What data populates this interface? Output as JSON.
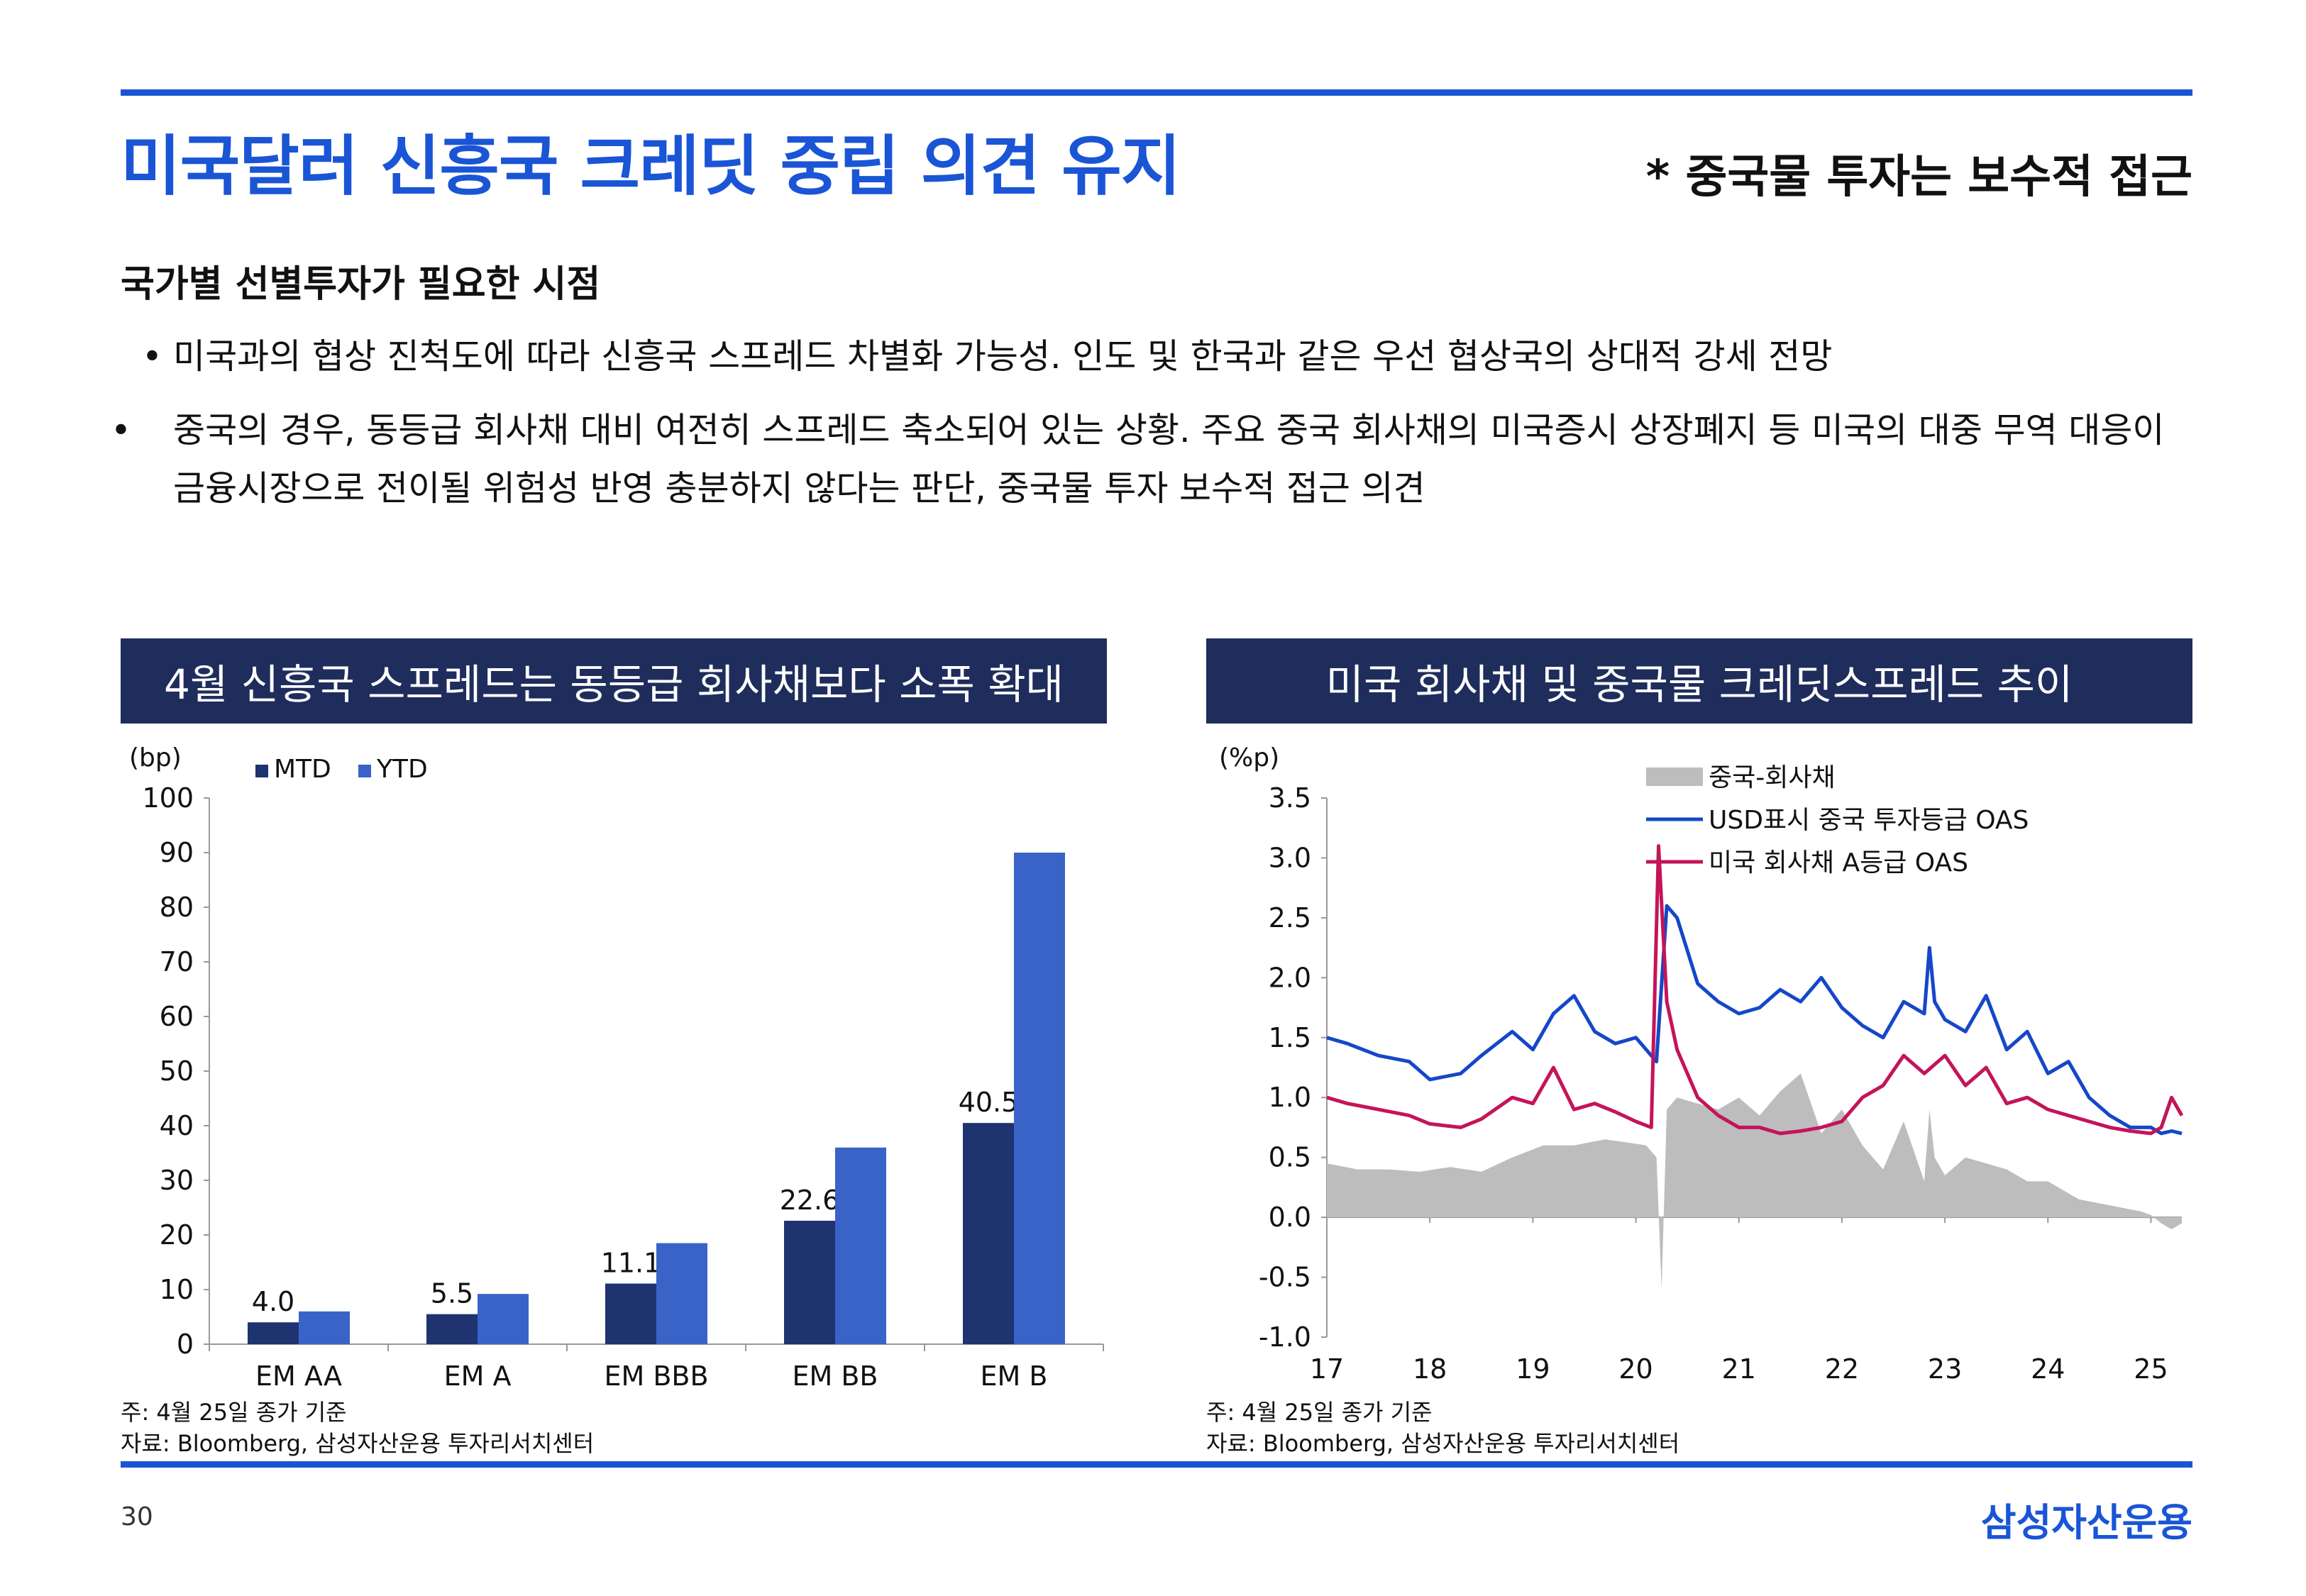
{
  "header": {
    "title": "미국달러 신흥국 크레딧 중립 의견 유지",
    "subtitle": "* 중국물 투자는 보수적 접근"
  },
  "section": {
    "heading": "국가별 선별투자가 필요한 시점",
    "bullets": [
      "미국과의 협상 진척도에 따라 신흥국 스프레드 차별화 가능성. 인도 및 한국과 같은 우선 협상국의 상대적 강세 전망",
      "중국의 경우, 동등급 회사채 대비 여전히 스프레드 축소되어 있는 상황. 주요 중국 회사채의 미국증시 상장폐지 등 미국의 대중 무역 대응이 금융시장으로 전이될 위험성 반영 충분하지 않다는 판단, 중국물 투자 보수적 접근 의견"
    ]
  },
  "panel_left": {
    "title": "4월 신흥국 스프레드는 동등급 회사채보다 소폭 확대",
    "note": "주: 4월 25일 종가 기준",
    "source": "자료: Bloomberg, 삼성자산운용 투자리서치센터"
  },
  "panel_right": {
    "title": "미국 회사채 및 중국물 크레딧스프레드 추이",
    "note": "주: 4월 25일 종가 기준",
    "source": "자료: Bloomberg, 삼성자산운용 투자리서치센터"
  },
  "footer": {
    "page_number": "30",
    "logo_text": "삼성자산운용"
  },
  "chart_data": [
    {
      "type": "bar",
      "unit_label": "(bp)",
      "categories": [
        "EM AA",
        "EM A",
        "EM BBB",
        "EM BB",
        "EM B"
      ],
      "series": [
        {
          "name": "MTD",
          "color": "#1f3370",
          "values": [
            4.0,
            5.5,
            11.1,
            22.6,
            40.5
          ],
          "labels": [
            "4.0",
            "5.5",
            "11.1",
            "22.6",
            "40.5"
          ]
        },
        {
          "name": "YTD",
          "color": "#3a63c8",
          "values": [
            6.0,
            9.2,
            18.5,
            36.0,
            90.0
          ]
        }
      ],
      "ylim": [
        0,
        100
      ],
      "yticks": [
        "0",
        "10",
        "20",
        "30",
        "40",
        "50",
        "60",
        "70",
        "80",
        "90",
        "100"
      ]
    },
    {
      "type": "line",
      "unit_label": "(%p)",
      "ylim": [
        -1.0,
        3.5
      ],
      "yticks": [
        "-1.0",
        "-0.5",
        "0.0",
        "0.5",
        "1.0",
        "1.5",
        "2.0",
        "2.5",
        "3.0",
        "3.5"
      ],
      "xticks": [
        "17",
        "18",
        "19",
        "20",
        "21",
        "22",
        "23",
        "24",
        "25"
      ],
      "xrange": [
        2017.0,
        2025.3
      ],
      "series": [
        {
          "name": "중국-회사채",
          "kind": "area",
          "color": "#bdbdbd",
          "x": [
            2017.0,
            2017.3,
            2017.6,
            2017.9,
            2018.2,
            2018.5,
            2018.8,
            2019.1,
            2019.4,
            2019.7,
            2019.95,
            2020.1,
            2020.2,
            2020.25,
            2020.3,
            2020.4,
            2020.6,
            2020.8,
            2021.0,
            2021.2,
            2021.4,
            2021.6,
            2021.8,
            2022.0,
            2022.2,
            2022.4,
            2022.6,
            2022.8,
            2022.85,
            2022.9,
            2023.0,
            2023.2,
            2023.4,
            2023.6,
            2023.8,
            2024.0,
            2024.3,
            2024.6,
            2024.9,
            2025.0,
            2025.1,
            2025.2,
            2025.3
          ],
          "y": [
            0.45,
            0.4,
            0.4,
            0.38,
            0.42,
            0.38,
            0.5,
            0.6,
            0.6,
            0.65,
            0.62,
            0.6,
            0.5,
            -0.6,
            0.9,
            1.0,
            0.95,
            0.9,
            1.0,
            0.85,
            1.05,
            1.2,
            0.7,
            0.9,
            0.6,
            0.4,
            0.8,
            0.3,
            0.9,
            0.5,
            0.35,
            0.5,
            0.45,
            0.4,
            0.3,
            0.3,
            0.15,
            0.1,
            0.05,
            0.02,
            -0.05,
            -0.1,
            -0.05
          ]
        },
        {
          "name": "USD표시 중국 투자등급 OAS",
          "kind": "line",
          "color": "#1547c8",
          "x": [
            2017.0,
            2017.2,
            2017.5,
            2017.8,
            2018.0,
            2018.3,
            2018.5,
            2018.8,
            2019.0,
            2019.2,
            2019.4,
            2019.6,
            2019.8,
            2020.0,
            2020.1,
            2020.2,
            2020.3,
            2020.4,
            2020.6,
            2020.8,
            2021.0,
            2021.2,
            2021.4,
            2021.6,
            2021.8,
            2022.0,
            2022.2,
            2022.4,
            2022.6,
            2022.8,
            2022.85,
            2022.9,
            2023.0,
            2023.2,
            2023.4,
            2023.6,
            2023.8,
            2024.0,
            2024.2,
            2024.4,
            2024.6,
            2024.8,
            2025.0,
            2025.1,
            2025.2,
            2025.3
          ],
          "y": [
            1.5,
            1.45,
            1.35,
            1.3,
            1.15,
            1.2,
            1.35,
            1.55,
            1.4,
            1.7,
            1.85,
            1.55,
            1.45,
            1.5,
            1.4,
            1.3,
            2.6,
            2.5,
            1.95,
            1.8,
            1.7,
            1.75,
            1.9,
            1.8,
            2.0,
            1.75,
            1.6,
            1.5,
            1.8,
            1.7,
            2.25,
            1.8,
            1.65,
            1.55,
            1.85,
            1.4,
            1.55,
            1.2,
            1.3,
            1.0,
            0.85,
            0.75,
            0.75,
            0.7,
            0.72,
            0.7
          ]
        },
        {
          "name": "미국 회사채 A등급 OAS",
          "kind": "line",
          "color": "#c4145a",
          "x": [
            2017.0,
            2017.2,
            2017.5,
            2017.8,
            2018.0,
            2018.3,
            2018.5,
            2018.8,
            2019.0,
            2019.2,
            2019.4,
            2019.6,
            2019.8,
            2020.0,
            2020.15,
            2020.22,
            2020.3,
            2020.4,
            2020.6,
            2020.8,
            2021.0,
            2021.2,
            2021.4,
            2021.6,
            2021.8,
            2022.0,
            2022.2,
            2022.4,
            2022.6,
            2022.8,
            2023.0,
            2023.2,
            2023.4,
            2023.6,
            2023.8,
            2024.0,
            2024.2,
            2024.4,
            2024.6,
            2024.8,
            2025.0,
            2025.1,
            2025.2,
            2025.3
          ],
          "y": [
            1.0,
            0.95,
            0.9,
            0.85,
            0.78,
            0.75,
            0.82,
            1.0,
            0.95,
            1.25,
            0.9,
            0.95,
            0.88,
            0.8,
            0.75,
            3.1,
            1.8,
            1.4,
            1.0,
            0.85,
            0.75,
            0.75,
            0.7,
            0.72,
            0.75,
            0.8,
            1.0,
            1.1,
            1.35,
            1.2,
            1.35,
            1.1,
            1.25,
            0.95,
            1.0,
            0.9,
            0.85,
            0.8,
            0.75,
            0.72,
            0.7,
            0.75,
            1.0,
            0.85
          ]
        }
      ]
    }
  ]
}
